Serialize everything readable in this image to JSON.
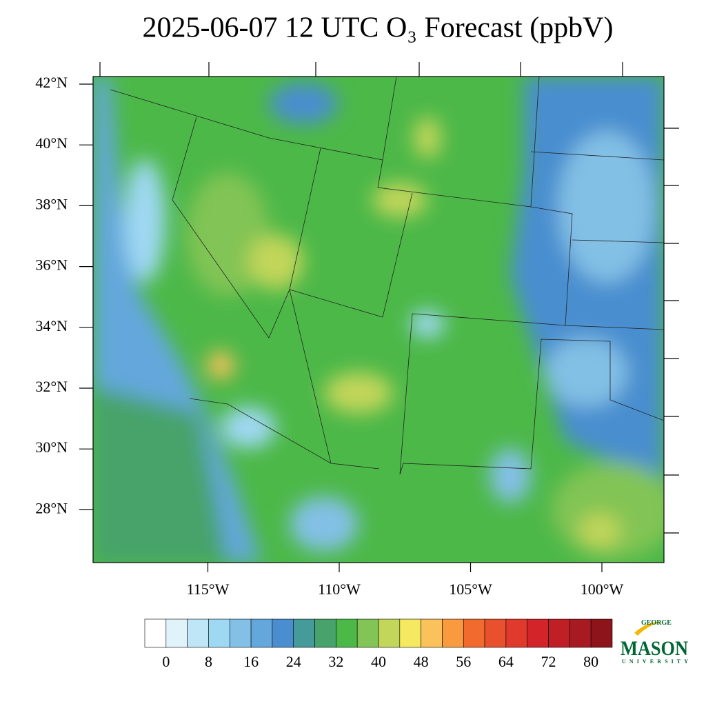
{
  "title": "2025-06-07 12 UTC O₃ Forecast (ppbV)",
  "map": {
    "lat_ticks": [
      {
        "value": 42,
        "label": "42°N"
      },
      {
        "value": 40,
        "label": "40°N"
      },
      {
        "value": 38,
        "label": "38°N"
      },
      {
        "value": 36,
        "label": "36°N"
      },
      {
        "value": 34,
        "label": "34°N"
      },
      {
        "value": 32,
        "label": "32°N"
      },
      {
        "value": 30,
        "label": "30°N"
      },
      {
        "value": 28,
        "label": "28°N"
      }
    ],
    "lon_ticks": [
      {
        "value": -115,
        "label": "115°W"
      },
      {
        "value": -110,
        "label": "110°W"
      },
      {
        "value": -105,
        "label": "105°W"
      },
      {
        "value": -100,
        "label": "100°W"
      }
    ]
  },
  "colorbar": {
    "levels": [
      0,
      4,
      8,
      12,
      16,
      20,
      24,
      28,
      32,
      36,
      40,
      44,
      48,
      52,
      56,
      60,
      64,
      68,
      72,
      76,
      80
    ],
    "ticks": [
      0,
      8,
      16,
      24,
      32,
      40,
      48,
      56,
      64,
      72,
      80
    ],
    "colors": [
      "#ffffff",
      "#e0f3fb",
      "#bfe6f7",
      "#9fd8f3",
      "#83c0e5",
      "#64a7dc",
      "#4a8ecf",
      "#459a9a",
      "#47a36b",
      "#4cb848",
      "#82c455",
      "#c2d65a",
      "#f5e960",
      "#fbc15a",
      "#f99a3e",
      "#f26a2d",
      "#e9502d",
      "#df3a2c",
      "#d3242a",
      "#c01f26",
      "#a81a22",
      "#8c141a"
    ]
  },
  "logo": {
    "line1": "GEORGE",
    "line2": "MASON",
    "line3": "UNIVERSITY"
  }
}
